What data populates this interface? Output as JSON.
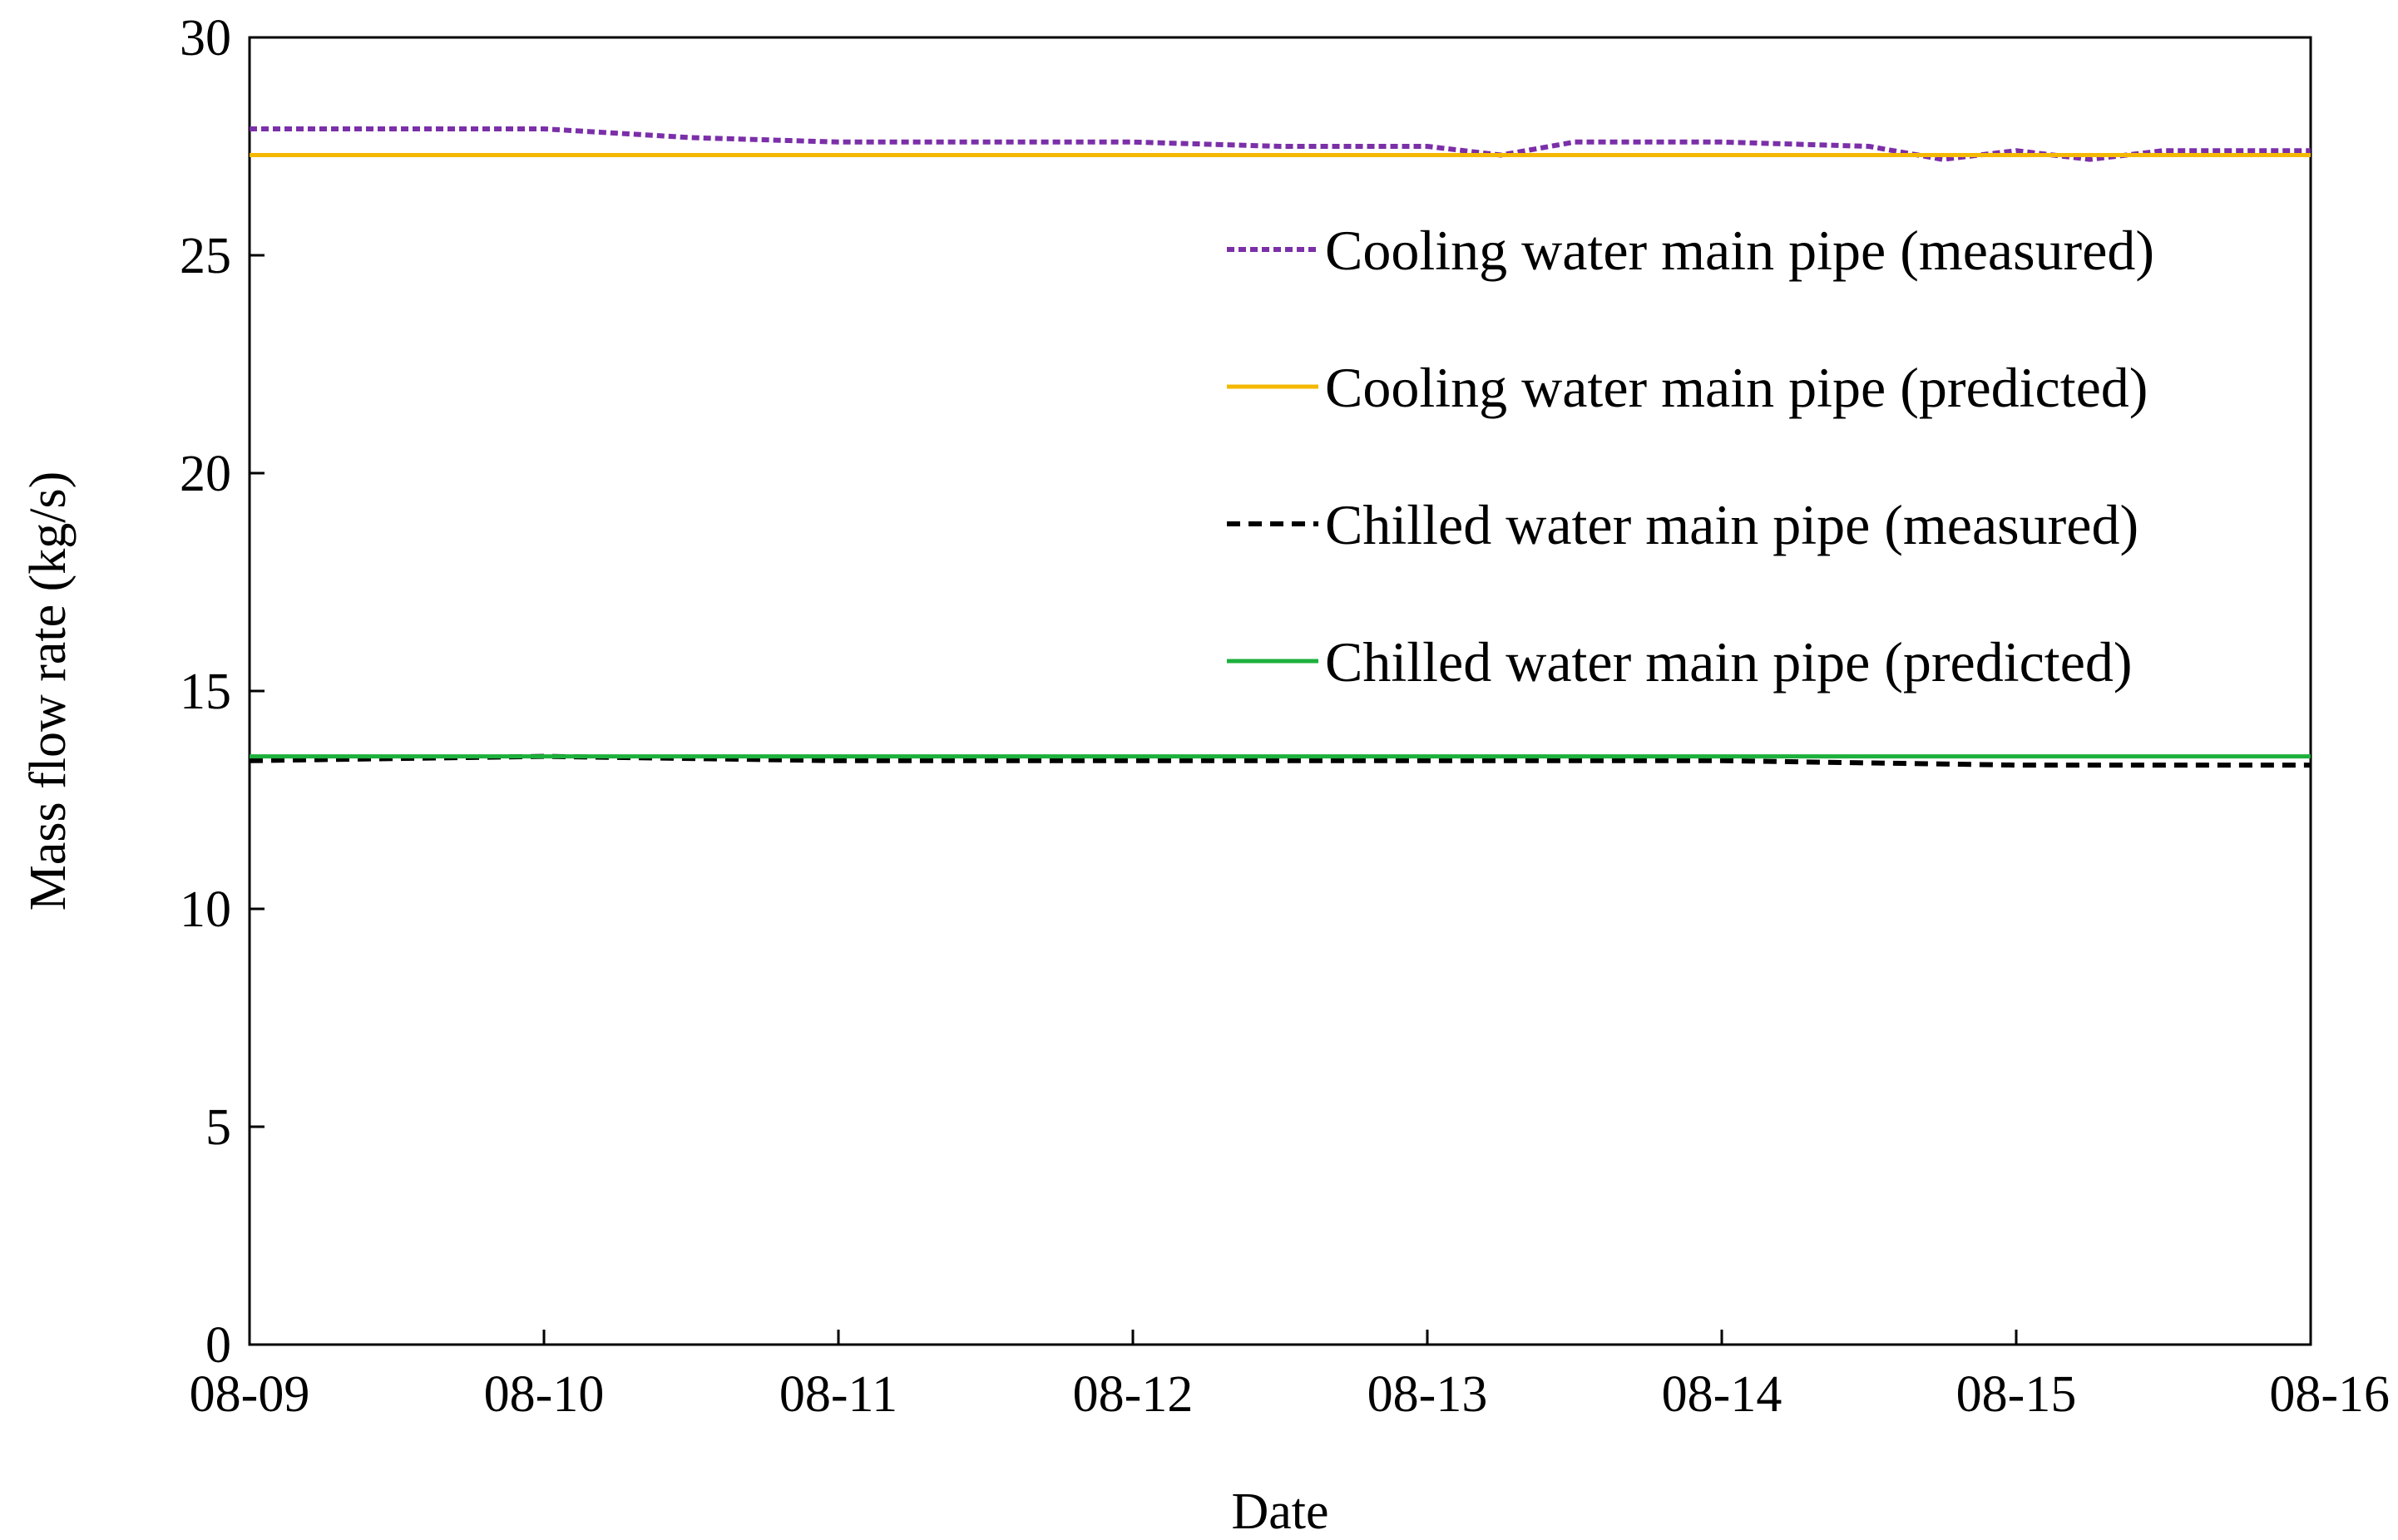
{
  "chart_data": {
    "type": "line",
    "title": "",
    "xlabel": "Date",
    "ylabel": "Mass flow rate (kg/s)",
    "x_ticks": [
      "08-09",
      "08-10",
      "08-11",
      "08-12",
      "08-13",
      "08-14",
      "08-15",
      "08-16"
    ],
    "y_ticks": [
      "0",
      "5",
      "10",
      "15",
      "20",
      "25",
      "30"
    ],
    "ylim": [
      0,
      30
    ],
    "xlim": [
      "08-09",
      "08-16"
    ],
    "grid": false,
    "legend_position": "upper-right",
    "series": [
      {
        "name": "Cooling water main pipe (measured)",
        "style": "dotted",
        "color": "#7B2FA8",
        "x": [
          "08-09",
          "08-09 12:00",
          "08-10",
          "08-10 12:00",
          "08-11",
          "08-11 12:00",
          "08-12",
          "08-12 12:00",
          "08-13",
          "08-13 06:00",
          "08-13 12:00",
          "08-14",
          "08-14 12:00",
          "08-14 18:00",
          "08-15",
          "08-15 06:00",
          "08-15 12:00",
          "08-16"
        ],
        "values": [
          27.9,
          27.9,
          27.9,
          27.7,
          27.6,
          27.6,
          27.6,
          27.5,
          27.5,
          27.3,
          27.6,
          27.6,
          27.5,
          27.2,
          27.4,
          27.2,
          27.4,
          27.4
        ]
      },
      {
        "name": "Cooling water main pipe (predicted)",
        "style": "solid",
        "color": "#F5B800",
        "x": [
          "08-09",
          "08-16"
        ],
        "values": [
          27.3,
          27.3
        ]
      },
      {
        "name": "Chilled water main pipe (measured)",
        "style": "dashed",
        "color": "#000000",
        "x": [
          "08-09",
          "08-10",
          "08-11",
          "08-12",
          "08-13",
          "08-14",
          "08-15",
          "08-16"
        ],
        "values": [
          13.4,
          13.5,
          13.4,
          13.4,
          13.4,
          13.4,
          13.3,
          13.3
        ]
      },
      {
        "name": "Chilled water main pipe (predicted)",
        "style": "solid",
        "color": "#1DB03C",
        "x": [
          "08-09",
          "08-16"
        ],
        "values": [
          13.5,
          13.5
        ]
      }
    ]
  }
}
